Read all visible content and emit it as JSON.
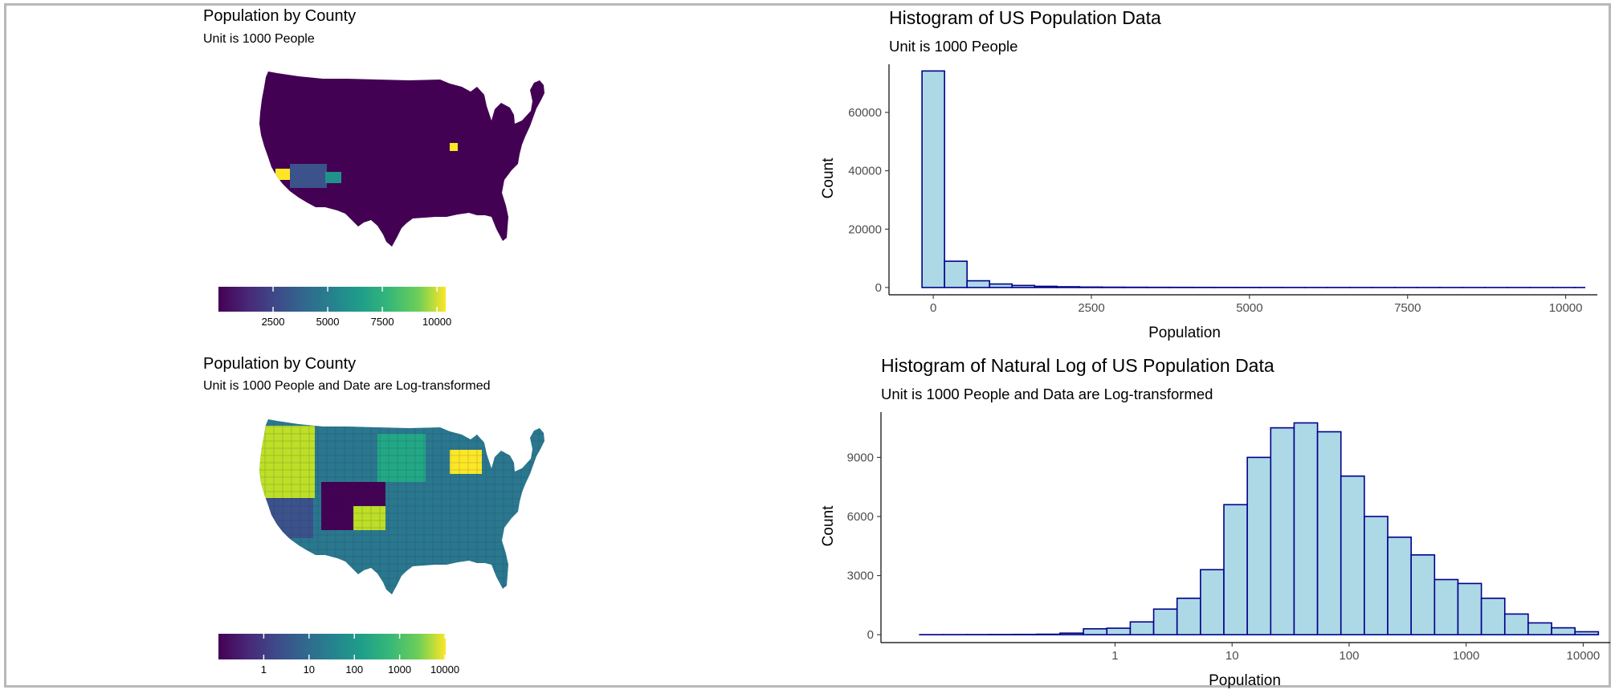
{
  "maps": [
    {
      "title": "Population by County",
      "subtitle": "Unit is 1000 People",
      "legend": {
        "type": "linear",
        "ticks": [
          "2500",
          "5000",
          "7500",
          "10000"
        ],
        "tick_values": [
          2500,
          5000,
          7500,
          10000
        ],
        "range": [
          0,
          10400
        ]
      },
      "base_color": "#440154",
      "highlight_colors": [
        "#fde725",
        "#3b528b",
        "#21918c"
      ]
    },
    {
      "title": "Population by County",
      "subtitle": "Unit is 1000 People and Date are Log-transformed",
      "legend": {
        "type": "log",
        "ticks": [
          "1",
          "10",
          "100",
          "1000",
          "10000"
        ],
        "tick_values": [
          1,
          10,
          100,
          1000,
          10000
        ],
        "range": [
          0.1,
          10400
        ]
      },
      "base_color": "#2a788e",
      "highlight_colors": [
        "#bddf26",
        "#3b528b",
        "#440154",
        "#22a884",
        "#fde725"
      ]
    }
  ],
  "chart_data": [
    {
      "type": "bar",
      "title": "Histogram of US Population Data",
      "subtitle": "Unit is 1000 People",
      "xlabel": "Population",
      "ylabel": "Count",
      "x_scale": "linear",
      "xlim": [
        -700,
        10500
      ],
      "ylim": [
        -2500,
        76500
      ],
      "x_ticks": [
        "0",
        "2500",
        "5000",
        "7500",
        "10000"
      ],
      "x_tick_values": [
        0,
        2500,
        5000,
        7500,
        10000
      ],
      "y_ticks": [
        "0",
        "20000",
        "40000",
        "60000"
      ],
      "y_tick_values": [
        0,
        20000,
        40000,
        60000
      ],
      "bin_edges": [
        -178,
        178,
        534,
        890,
        1246,
        1602,
        1958,
        2314,
        2670,
        3026,
        3382,
        3738,
        4094,
        4450,
        4806,
        5162,
        5518,
        5874,
        6230,
        6586,
        6942,
        7298,
        7654,
        8010,
        8366,
        8722,
        9078,
        9434,
        9790,
        10146,
        10300
      ],
      "counts": [
        74200,
        9000,
        2300,
        1200,
        700,
        400,
        250,
        150,
        100,
        80,
        60,
        50,
        40,
        30,
        25,
        20,
        15,
        12,
        10,
        8,
        6,
        5,
        5,
        4,
        4,
        3,
        3,
        2,
        2,
        2
      ],
      "fill": "#add8e6",
      "stroke": "#00008b",
      "grid": false
    },
    {
      "type": "bar",
      "title": "Histogram of Natural Log of US Population Data",
      "subtitle": "Unit is 1000 People and Data are Log-transformed",
      "xlabel": "Population",
      "ylabel": "Count",
      "x_scale": "log",
      "xlim": [
        0.01,
        17000
      ],
      "ylim": [
        -400,
        11300
      ],
      "x_ticks": [
        "1",
        "10",
        "100",
        "1000",
        "10000"
      ],
      "x_tick_values": [
        1,
        10,
        100,
        1000,
        10000
      ],
      "y_ticks": [
        "0",
        "3000",
        "6000",
        "9000"
      ],
      "y_tick_values": [
        0,
        3000,
        6000,
        9000
      ],
      "bin_edges": [
        0.0214,
        0.0339,
        0.0537,
        0.0851,
        0.1349,
        0.2138,
        0.3388,
        0.537,
        0.851,
        1.349,
        2.138,
        3.388,
        5.37,
        8.51,
        13.49,
        21.38,
        33.88,
        53.7,
        85.1,
        134.9,
        213.8,
        338.8,
        537,
        851,
        1349,
        2138,
        3388,
        5370,
        8510,
        13490
      ],
      "counts": [
        2,
        3,
        5,
        8,
        15,
        25,
        80,
        300,
        330,
        650,
        1300,
        1850,
        3300,
        6600,
        9000,
        10500,
        10750,
        10300,
        8050,
        6000,
        4950,
        4050,
        2800,
        2600,
        1850,
        1050,
        600,
        350,
        150
      ],
      "fill": "#add8e6",
      "stroke": "#00008b",
      "grid": false
    }
  ]
}
